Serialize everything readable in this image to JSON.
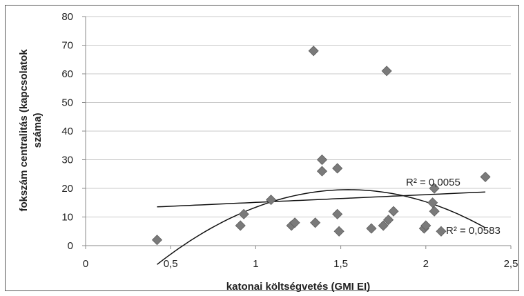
{
  "chart_data": {
    "type": "scatter",
    "title": "",
    "xlabel": "katonai költségvetés (GMI EI)",
    "ylabel": "fokszám centralitás (kapcsolatok száma)",
    "ylabel_lines": [
      "fokszám centralitás (kapcsolatok",
      "száma)"
    ],
    "xlim": [
      0,
      2.5
    ],
    "ylim": [
      0,
      80
    ],
    "x_ticks": [
      0,
      0.5,
      1,
      1.5,
      2,
      2.5
    ],
    "x_tick_labels": [
      "0",
      "0,5",
      "1",
      "1,5",
      "2",
      "2,5"
    ],
    "y_ticks": [
      0,
      10,
      20,
      30,
      40,
      50,
      60,
      70,
      80
    ],
    "y_tick_labels": [
      "0",
      "10",
      "20",
      "30",
      "40",
      "50",
      "60",
      "70",
      "80"
    ],
    "grid": "horizontal",
    "legend": "none",
    "marker_color": "#7a7a7a",
    "line_color": "#111111",
    "points": [
      {
        "x": 0.42,
        "y": 2
      },
      {
        "x": 0.91,
        "y": 7
      },
      {
        "x": 0.93,
        "y": 11
      },
      {
        "x": 1.09,
        "y": 16
      },
      {
        "x": 1.21,
        "y": 7
      },
      {
        "x": 1.23,
        "y": 8
      },
      {
        "x": 1.34,
        "y": 68
      },
      {
        "x": 1.35,
        "y": 8
      },
      {
        "x": 1.39,
        "y": 30
      },
      {
        "x": 1.39,
        "y": 26
      },
      {
        "x": 1.48,
        "y": 27
      },
      {
        "x": 1.48,
        "y": 11
      },
      {
        "x": 1.49,
        "y": 5
      },
      {
        "x": 1.68,
        "y": 6
      },
      {
        "x": 1.75,
        "y": 7
      },
      {
        "x": 1.77,
        "y": 61
      },
      {
        "x": 1.78,
        "y": 9
      },
      {
        "x": 1.81,
        "y": 12
      },
      {
        "x": 1.99,
        "y": 6
      },
      {
        "x": 2.0,
        "y": 7
      },
      {
        "x": 2.04,
        "y": 15
      },
      {
        "x": 2.05,
        "y": 20
      },
      {
        "x": 2.05,
        "y": 12
      },
      {
        "x": 2.09,
        "y": 5
      },
      {
        "x": 2.35,
        "y": 24
      }
    ],
    "trendlines": [
      {
        "type": "linear",
        "label": "R² = 0,0055",
        "coefficients": [
          12.4,
          2.7
        ],
        "x_range": [
          0.42,
          2.35
        ]
      },
      {
        "type": "polynomial",
        "label": "R² = 0,0583",
        "coefficients": [
          -29.7,
          63.7,
          -20.6
        ],
        "x_range": [
          0.42,
          2.35
        ]
      }
    ]
  }
}
